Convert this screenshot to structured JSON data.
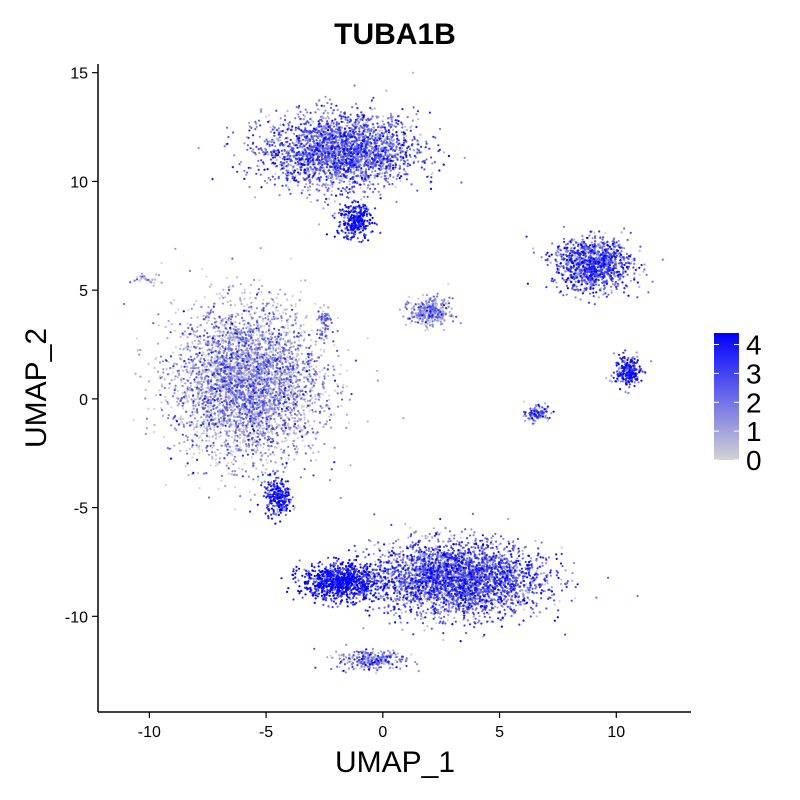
{
  "chart_data": {
    "type": "scatter",
    "title": "TUBA1B",
    "xlabel": "UMAP_1",
    "ylabel": "UMAP_2",
    "xlim": [
      -12.2,
      13.2
    ],
    "ylim": [
      -14.4,
      15.4
    ],
    "xticks": [
      -10,
      -5,
      0,
      5,
      10
    ],
    "xtick_labels": [
      "-10",
      "-5",
      "0",
      "5",
      "10"
    ],
    "yticks": [
      -10,
      -5,
      0,
      5,
      10,
      15
    ],
    "ytick_labels": [
      "-10",
      "-5",
      "0",
      "5",
      "10",
      "15"
    ],
    "grid": false,
    "legend": {
      "position": "right",
      "type": "colorbar",
      "min": 0,
      "max": 4.4,
      "ticks": [
        0,
        1,
        2,
        3,
        4
      ],
      "tick_labels": [
        "0",
        "1",
        "2",
        "3",
        "4"
      ],
      "low_color": "#d3d3d3",
      "high_color": "#0000ff"
    },
    "clusters": [
      {
        "center": [
          -1.8,
          11.4
        ],
        "spread": [
          2.7,
          1.4
        ],
        "mean_expression": 2.0,
        "n": 2600
      },
      {
        "center": [
          -1.2,
          8.2
        ],
        "spread": [
          0.6,
          0.7
        ],
        "mean_expression": 3.6,
        "n": 300
      },
      {
        "center": [
          -5.8,
          0.7
        ],
        "spread": [
          2.6,
          2.9
        ],
        "mean_expression": 1.0,
        "n": 4000
      },
      {
        "center": [
          -4.5,
          -4.5
        ],
        "spread": [
          0.5,
          0.7
        ],
        "mean_expression": 3.3,
        "n": 250
      },
      {
        "center": [
          -2.5,
          3.5
        ],
        "spread": [
          0.2,
          0.6
        ],
        "mean_expression": 1.5,
        "n": 60
      },
      {
        "center": [
          -10.0,
          5.5
        ],
        "spread": [
          0.5,
          0.2
        ],
        "mean_expression": 1.0,
        "n": 30
      },
      {
        "center": [
          2.0,
          4.0
        ],
        "spread": [
          0.7,
          0.5
        ],
        "mean_expression": 0.8,
        "n": 400
      },
      {
        "center": [
          9.0,
          6.2
        ],
        "spread": [
          1.4,
          1.0
        ],
        "mean_expression": 2.4,
        "n": 1100
      },
      {
        "center": [
          10.5,
          1.3
        ],
        "spread": [
          0.5,
          0.6
        ],
        "mean_expression": 3.0,
        "n": 250
      },
      {
        "center": [
          6.6,
          -0.7
        ],
        "spread": [
          0.4,
          0.3
        ],
        "mean_expression": 2.0,
        "n": 120
      },
      {
        "center": [
          3.2,
          -8.3
        ],
        "spread": [
          3.0,
          1.4
        ],
        "mean_expression": 2.3,
        "n": 3200
      },
      {
        "center": [
          -1.8,
          -8.4
        ],
        "spread": [
          1.4,
          0.7
        ],
        "mean_expression": 3.6,
        "n": 900
      },
      {
        "center": [
          -0.5,
          -12.0
        ],
        "spread": [
          1.2,
          0.4
        ],
        "mean_expression": 1.6,
        "n": 300
      }
    ]
  }
}
